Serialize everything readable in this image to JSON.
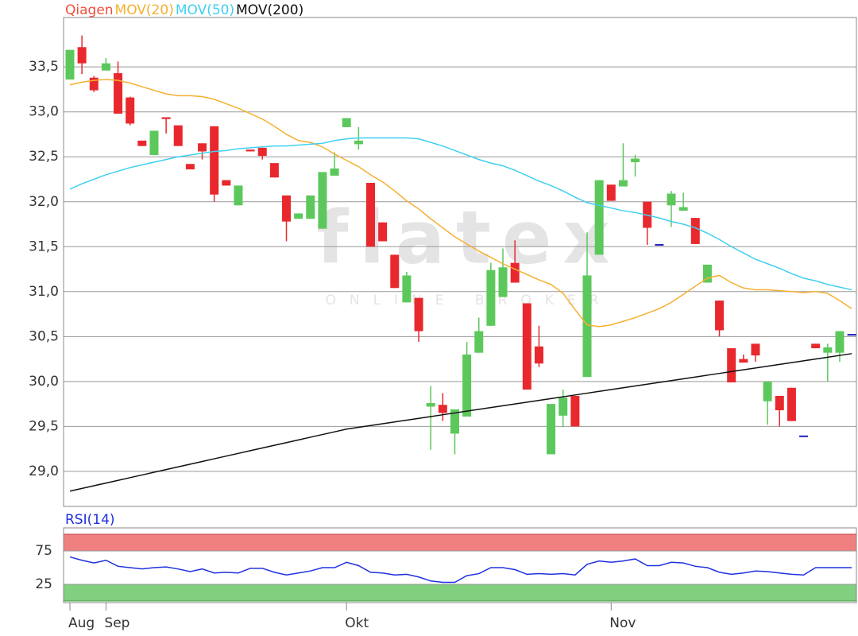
{
  "chart_data": [
    {
      "type": "candlestick",
      "watermark": "flatex",
      "watermark_subtitle": "ONLINE BROKER",
      "categories": [
        "Aug",
        null,
        null,
        "Sep",
        null,
        null,
        null,
        null,
        null,
        null,
        null,
        null,
        null,
        null,
        null,
        null,
        null,
        null,
        null,
        null,
        null,
        null,
        null,
        "Okt",
        null,
        null,
        null,
        null,
        null,
        null,
        null,
        null,
        null,
        null,
        null,
        null,
        null,
        null,
        null,
        null,
        null,
        null,
        null,
        null,
        null,
        "Nov",
        null,
        null,
        null,
        null,
        null,
        null,
        null,
        null,
        null,
        null,
        null,
        null,
        null,
        null,
        null,
        null,
        null,
        null,
        null,
        null
      ],
      "ylim": [
        28.61,
        34.05
      ],
      "yticks": [
        {
          "value": 29.0,
          "label": "29,0"
        },
        {
          "value": 29.5,
          "label": "29,5"
        },
        {
          "value": 30.0,
          "label": "30,0"
        },
        {
          "value": 30.5,
          "label": "30,5"
        },
        {
          "value": 31.0,
          "label": "31,0"
        },
        {
          "value": 31.5,
          "label": "31,5"
        },
        {
          "value": 32.0,
          "label": "32,0"
        },
        {
          "value": 32.5,
          "label": "32,5"
        },
        {
          "value": 33.0,
          "label": "33,0"
        },
        {
          "value": 33.5,
          "label": "33,5"
        }
      ],
      "grid": true,
      "series": [
        {
          "name": "Qiagen",
          "type": "candlestick",
          "color": "#f0503c",
          "up_color": "#5cc85c",
          "down_color": "#e8282d",
          "flat_color": "#2020c0",
          "open": [
            33.36,
            33.72,
            33.38,
            33.46,
            33.43,
            33.16,
            32.68,
            32.52,
            32.94,
            32.85,
            32.42,
            32.65,
            32.84,
            32.24,
            31.96,
            32.58,
            32.6,
            32.43,
            32.07,
            31.81,
            31.81,
            31.7,
            32.29,
            32.83,
            32.64,
            32.21,
            31.77,
            31.41,
            30.88,
            30.93,
            29.72,
            29.74,
            29.42,
            29.61,
            30.32,
            30.62,
            30.94,
            31.32,
            30.87,
            30.39,
            29.19,
            29.62,
            29.84,
            30.05,
            31.41,
            32.19,
            32.17,
            32.44,
            32.0,
            31.52,
            31.96,
            31.9,
            31.82,
            31.1,
            30.9,
            30.37,
            30.25,
            30.42,
            29.78,
            29.84,
            29.93,
            29.39,
            30.42,
            30.32,
            30.32,
            30.52
          ],
          "high": [
            33.69,
            33.85,
            33.4,
            33.6,
            33.56,
            33.17,
            32.68,
            32.79,
            32.94,
            32.85,
            32.42,
            32.65,
            32.84,
            32.24,
            32.18,
            32.58,
            32.6,
            32.43,
            32.07,
            31.87,
            32.07,
            32.33,
            32.55,
            32.93,
            32.83,
            32.21,
            31.77,
            31.41,
            31.22,
            30.93,
            29.95,
            29.87,
            29.69,
            30.44,
            30.71,
            31.32,
            31.48,
            31.57,
            30.87,
            30.62,
            29.75,
            29.91,
            29.84,
            31.66,
            32.24,
            32.19,
            32.65,
            32.52,
            32.0,
            31.52,
            32.12,
            32.1,
            31.82,
            31.3,
            30.9,
            30.37,
            30.3,
            30.42,
            30.0,
            29.84,
            29.93,
            29.39,
            30.42,
            30.42,
            30.56,
            30.52
          ],
          "low": [
            33.36,
            33.42,
            33.22,
            33.46,
            32.98,
            32.85,
            32.62,
            32.52,
            32.76,
            32.62,
            32.36,
            32.47,
            32.0,
            32.18,
            31.96,
            32.56,
            32.47,
            32.27,
            31.56,
            31.81,
            31.81,
            31.7,
            32.29,
            32.83,
            32.58,
            31.5,
            31.56,
            31.04,
            30.88,
            30.44,
            29.24,
            29.56,
            29.19,
            29.61,
            30.32,
            30.62,
            30.94,
            31.1,
            29.91,
            30.16,
            29.19,
            29.49,
            29.5,
            30.05,
            31.41,
            32.01,
            32.17,
            32.28,
            31.52,
            31.52,
            31.72,
            31.9,
            31.53,
            31.1,
            30.5,
            29.99,
            30.21,
            30.22,
            29.52,
            29.5,
            29.56,
            29.39,
            30.37,
            30.0,
            30.22,
            30.52
          ],
          "close": [
            33.69,
            33.54,
            33.24,
            33.54,
            32.98,
            32.87,
            32.62,
            32.79,
            32.92,
            32.62,
            32.36,
            32.56,
            32.08,
            32.18,
            32.18,
            32.56,
            32.51,
            32.27,
            31.78,
            31.87,
            32.07,
            32.33,
            32.37,
            32.93,
            32.68,
            31.5,
            31.56,
            31.04,
            31.18,
            30.56,
            29.76,
            29.65,
            29.69,
            30.3,
            30.56,
            31.24,
            31.27,
            31.1,
            29.91,
            30.2,
            29.75,
            29.82,
            29.5,
            31.18,
            32.24,
            32.01,
            32.24,
            32.48,
            31.71,
            31.52,
            32.09,
            31.94,
            31.53,
            31.3,
            30.57,
            29.99,
            30.21,
            30.29,
            30.0,
            29.68,
            29.56,
            29.39,
            30.37,
            30.38,
            30.56,
            30.52
          ]
        },
        {
          "name": "MOV(20)",
          "type": "line",
          "color": "#f5b030",
          "values": [
            33.3,
            33.33,
            33.35,
            33.36,
            33.35,
            33.32,
            33.28,
            33.24,
            33.2,
            33.18,
            33.18,
            33.17,
            33.14,
            33.09,
            33.04,
            32.98,
            32.92,
            32.84,
            32.75,
            32.68,
            32.66,
            32.61,
            32.53,
            32.46,
            32.39,
            32.3,
            32.22,
            32.12,
            32.01,
            31.92,
            31.81,
            31.71,
            31.61,
            31.53,
            31.45,
            31.38,
            31.31,
            31.25,
            31.19,
            31.13,
            31.08,
            30.98,
            30.8,
            30.63,
            30.61,
            30.63,
            30.67,
            30.71,
            30.76,
            30.81,
            30.88,
            30.97,
            31.06,
            31.15,
            31.18,
            31.1,
            31.04,
            31.02,
            31.02,
            31.01,
            31.0,
            30.99,
            31.0,
            30.98,
            30.9,
            30.81
          ]
        },
        {
          "name": "MOV(50)",
          "type": "line",
          "color": "#40d0f0",
          "values": [
            32.14,
            32.2,
            32.25,
            32.3,
            32.34,
            32.38,
            32.41,
            32.44,
            32.47,
            32.5,
            32.52,
            32.54,
            32.56,
            32.57,
            32.59,
            32.6,
            32.61,
            32.62,
            32.62,
            32.63,
            32.64,
            32.65,
            32.68,
            32.7,
            32.71,
            32.71,
            32.71,
            32.71,
            32.71,
            32.7,
            32.66,
            32.62,
            32.57,
            32.52,
            32.47,
            32.43,
            32.4,
            32.35,
            32.29,
            32.23,
            32.18,
            32.12,
            32.05,
            31.99,
            31.96,
            31.93,
            31.9,
            31.88,
            31.85,
            31.82,
            31.78,
            31.75,
            31.71,
            31.65,
            31.58,
            31.5,
            31.43,
            31.36,
            31.31,
            31.26,
            31.2,
            31.15,
            31.12,
            31.08,
            31.05,
            31.02
          ]
        },
        {
          "name": "MOV(200)",
          "type": "line",
          "color": "#111111",
          "values": [
            28.78,
            28.81,
            28.84,
            28.87,
            28.9,
            28.93,
            28.96,
            28.99,
            29.02,
            29.05,
            29.08,
            29.11,
            29.14,
            29.17,
            29.2,
            29.23,
            29.26,
            29.29,
            29.32,
            29.35,
            29.38,
            29.41,
            29.44,
            29.47,
            29.49,
            29.51,
            29.53,
            29.55,
            29.57,
            29.59,
            29.61,
            29.63,
            29.65,
            29.67,
            29.69,
            29.71,
            29.73,
            29.75,
            29.77,
            29.79,
            29.81,
            29.83,
            29.85,
            29.87,
            29.89,
            29.91,
            29.93,
            29.95,
            29.97,
            29.99,
            30.01,
            30.03,
            30.05,
            30.07,
            30.09,
            30.11,
            30.13,
            30.15,
            30.17,
            30.19,
            30.21,
            30.23,
            30.25,
            30.27,
            30.29,
            30.31
          ]
        }
      ]
    },
    {
      "type": "line",
      "ylim": [
        0,
        100
      ],
      "yticks": [
        25,
        75
      ],
      "grid": true,
      "overbought_color": "#f08080",
      "oversold_color": "#80d080",
      "series": [
        {
          "name": "RSI(14)",
          "color": "#2030e0",
          "values": [
            66,
            61,
            57,
            61,
            52,
            50,
            48,
            50,
            51,
            48,
            44,
            48,
            42,
            43,
            42,
            49,
            49,
            43,
            39,
            42,
            45,
            50,
            50,
            58,
            53,
            43,
            42,
            39,
            40,
            36,
            30,
            28,
            28,
            38,
            41,
            50,
            50,
            47,
            40,
            41,
            40,
            41,
            39,
            55,
            60,
            58,
            60,
            63,
            53,
            53,
            58,
            57,
            52,
            50,
            43,
            40,
            42,
            45,
            44,
            42,
            40,
            39,
            50,
            50,
            50,
            50
          ]
        }
      ]
    }
  ]
}
